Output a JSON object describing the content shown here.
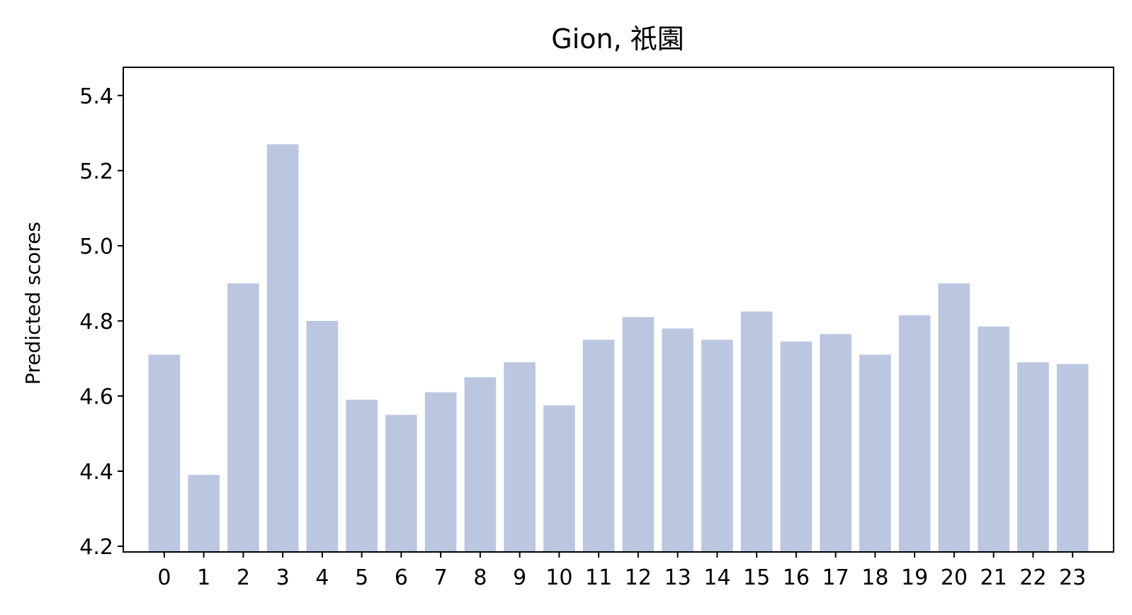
{
  "chart_data": {
    "type": "bar",
    "title": "Gion, 祇園",
    "xlabel": "",
    "ylabel": "Predicted scores",
    "categories": [
      "0",
      "1",
      "2",
      "3",
      "4",
      "5",
      "6",
      "7",
      "8",
      "9",
      "10",
      "11",
      "12",
      "13",
      "14",
      "15",
      "16",
      "17",
      "18",
      "19",
      "20",
      "21",
      "22",
      "23"
    ],
    "values": [
      4.71,
      4.39,
      4.9,
      5.27,
      4.8,
      4.59,
      4.55,
      4.61,
      4.65,
      4.69,
      4.575,
      4.75,
      4.81,
      4.78,
      4.75,
      4.825,
      4.745,
      4.765,
      4.71,
      4.815,
      4.9,
      4.785,
      4.69,
      4.685
    ],
    "ylim": [
      4.185,
      5.475
    ],
    "yticks": [
      "4.2",
      "4.4",
      "4.6",
      "4.8",
      "5.0",
      "5.2",
      "5.4"
    ],
    "bar_color": "#bbc7e1",
    "grid": false,
    "legend": "none"
  }
}
